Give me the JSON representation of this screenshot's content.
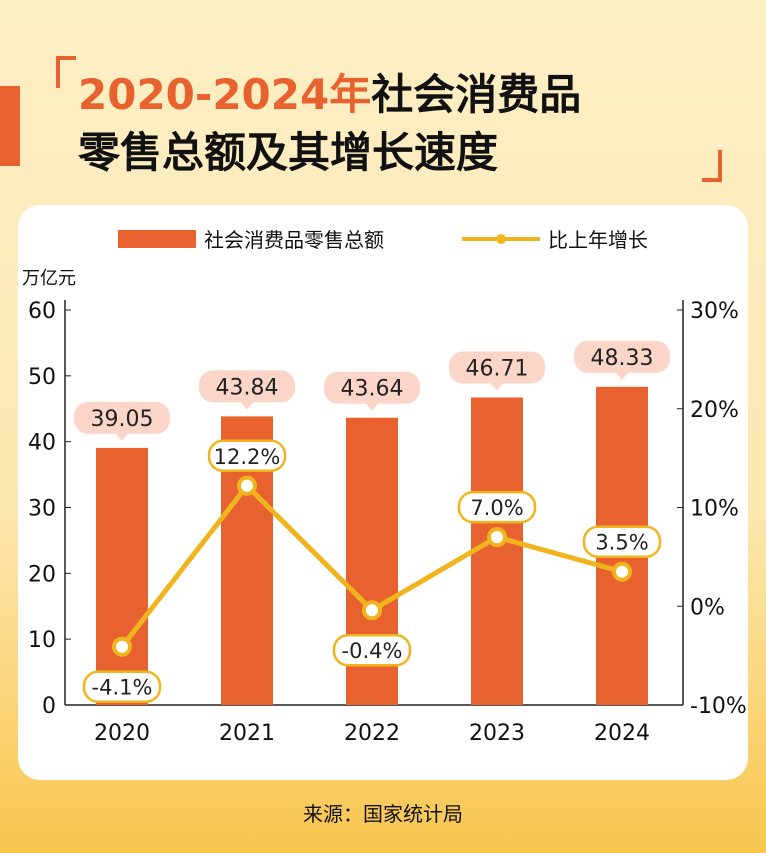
{
  "header": {
    "title_highlight": "2020-2024年",
    "title_rest": "社会消费品",
    "title_line2": "零售总额及其增长速度"
  },
  "source": "来源：国家统计局",
  "colors": {
    "bar": "#e8622f",
    "line": "#f0b51e",
    "bubble": "#fbd5c8"
  },
  "chart_data": {
    "type": "bar+line",
    "title": "2020-2024年社会消费品零售总额及其增长速度",
    "categories": [
      "2020",
      "2021",
      "2022",
      "2023",
      "2024"
    ],
    "series": [
      {
        "name": "社会消费品零售总额",
        "type": "bar",
        "axis": "left",
        "values": [
          39.05,
          43.84,
          43.64,
          46.71,
          48.33
        ],
        "labels": [
          "39.05",
          "43.84",
          "43.64",
          "46.71",
          "48.33"
        ]
      },
      {
        "name": "比上年增长",
        "type": "line",
        "axis": "right",
        "values": [
          -4.1,
          12.2,
          -0.4,
          7.0,
          3.5
        ],
        "labels": [
          "-4.1%",
          "12.2%",
          "-0.4%",
          "7.0%",
          "3.5%"
        ]
      }
    ],
    "ylabel": "万亿元",
    "ylim": [
      0,
      60
    ],
    "yticks": [
      "0",
      "10",
      "20",
      "30",
      "40",
      "50",
      "60"
    ],
    "y2lim": [
      -10,
      30
    ],
    "y2ticks": [
      "-10%",
      "0%",
      "10%",
      "20%",
      "30%"
    ],
    "legend": "top-center"
  }
}
